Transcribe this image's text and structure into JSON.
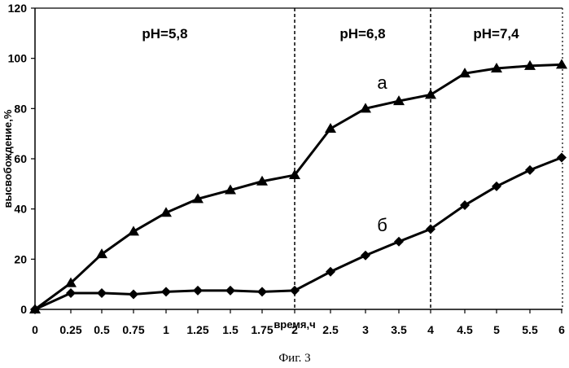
{
  "chart_data": {
    "type": "line",
    "caption": "Фиг. 3",
    "xlabel": "время,ч",
    "ylabel": "высвобождение,%",
    "ylim": [
      0,
      120
    ],
    "y_ticks": [
      0,
      20,
      40,
      60,
      80,
      100,
      120
    ],
    "x_tick_labels": [
      "0",
      "0.25",
      "0.5",
      "0.75",
      "1",
      "1.25",
      "1.5",
      "1.75",
      "2",
      "2.5",
      "3",
      "3.5",
      "4",
      "4.5",
      "5",
      "5.5",
      "6"
    ],
    "regions": [
      {
        "label": "pH=5,8",
        "from": "0",
        "to": "2"
      },
      {
        "label": "pH=6,8",
        "from": "2",
        "to": "4"
      },
      {
        "label": "pH=7,4",
        "from": "4",
        "to": "6"
      }
    ],
    "grid": false,
    "series": [
      {
        "name": "а",
        "marker": "triangle",
        "values": [
          0,
          10.5,
          22,
          31,
          38.5,
          44,
          47.5,
          51,
          53.5,
          72,
          80,
          83,
          85.5,
          94,
          96,
          97,
          97.5
        ]
      },
      {
        "name": "б",
        "marker": "diamond",
        "values": [
          0,
          6.5,
          6.5,
          6,
          7,
          7.5,
          7.5,
          7,
          7.5,
          15,
          21.5,
          27,
          32,
          41.5,
          49,
          55.5,
          60.5
        ]
      }
    ]
  }
}
